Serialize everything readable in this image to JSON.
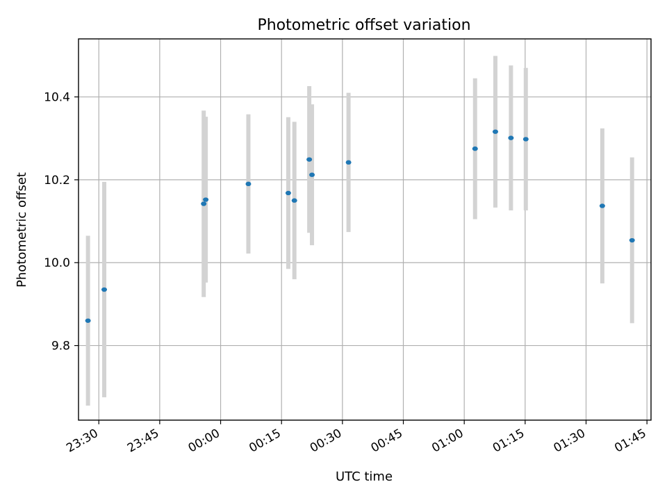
{
  "chart_data": {
    "type": "scatter",
    "title": "Photometric offset variation",
    "xlabel": "UTC time",
    "ylabel": "Photometric offset",
    "grid": true,
    "legend": "none",
    "xlim": [
      "23:25",
      "01:46"
    ],
    "ylim": [
      9.62,
      10.54
    ],
    "x_ticks": [
      "23:30",
      "23:45",
      "00:00",
      "00:15",
      "00:30",
      "00:45",
      "01:00",
      "01:15",
      "01:30",
      "01:45"
    ],
    "y_ticks": [
      "9.8",
      "10.0",
      "10.2",
      "10.4"
    ],
    "series": [
      {
        "marker_color": "#1f77b4",
        "errorbar_color": "#d3d3d3",
        "points": [
          {
            "x": "23:27:20",
            "y": 9.86,
            "yerr": 0.205
          },
          {
            "x": "23:31:20",
            "y": 9.935,
            "yerr": 0.26
          },
          {
            "x": "23:55:50",
            "y": 10.142,
            "yerr": 0.225
          },
          {
            "x": "23:56:20",
            "y": 10.152,
            "yerr": 0.2
          },
          {
            "x": "00:06:50",
            "y": 10.19,
            "yerr": 0.168
          },
          {
            "x": "00:16:40",
            "y": 10.168,
            "yerr": 0.183
          },
          {
            "x": "00:18:10",
            "y": 10.15,
            "yerr": 0.19
          },
          {
            "x": "00:21:50",
            "y": 10.249,
            "yerr": 0.177
          },
          {
            "x": "00:22:30",
            "y": 10.212,
            "yerr": 0.17
          },
          {
            "x": "00:31:30",
            "y": 10.242,
            "yerr": 0.168
          },
          {
            "x": "01:02:40",
            "y": 10.275,
            "yerr": 0.17
          },
          {
            "x": "01:07:40",
            "y": 10.316,
            "yerr": 0.183
          },
          {
            "x": "01:11:30",
            "y": 10.301,
            "yerr": 0.175
          },
          {
            "x": "01:15:10",
            "y": 10.298,
            "yerr": 0.172
          },
          {
            "x": "01:34:00",
            "y": 10.137,
            "yerr": 0.187
          },
          {
            "x": "01:41:20",
            "y": 10.054,
            "yerr": 0.2
          }
        ]
      }
    ]
  }
}
